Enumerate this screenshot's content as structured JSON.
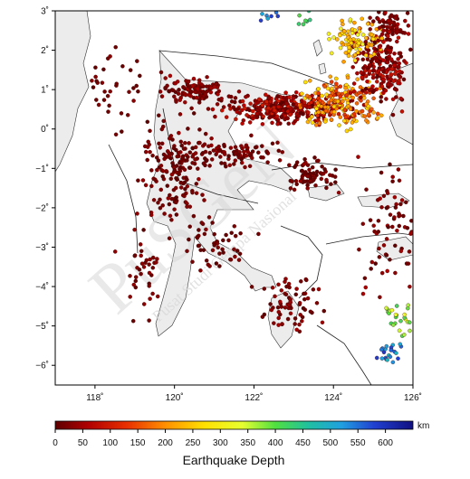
{
  "map": {
    "lon_range": [
      117,
      126
    ],
    "lat_range": [
      -6.5,
      3
    ],
    "lon_ticks": [
      {
        "value": 118,
        "label": "118˚"
      },
      {
        "value": 120,
        "label": "120˚"
      },
      {
        "value": 122,
        "label": "122˚"
      },
      {
        "value": 124,
        "label": "124˚"
      },
      {
        "value": 126,
        "label": "126˚"
      }
    ],
    "lat_ticks": [
      {
        "value": 3,
        "label": "3˚"
      },
      {
        "value": 2,
        "label": "2˚"
      },
      {
        "value": 1,
        "label": "1˚"
      },
      {
        "value": 0,
        "label": "0˚"
      },
      {
        "value": -1,
        "label": "−1˚"
      },
      {
        "value": -2,
        "label": "−2˚"
      },
      {
        "value": -3,
        "label": "−3˚"
      },
      {
        "value": -4,
        "label": "−4˚"
      },
      {
        "value": -5,
        "label": "−5˚"
      },
      {
        "value": -6,
        "label": "−6˚"
      }
    ],
    "land_color": "#ececec",
    "sea_color": "#ffffff",
    "fault_color": "#222222"
  },
  "colorbar": {
    "range": [
      0,
      650
    ],
    "ticks": [
      {
        "value": 0,
        "label": "0"
      },
      {
        "value": 50,
        "label": "50"
      },
      {
        "value": 100,
        "label": "100"
      },
      {
        "value": 150,
        "label": "150"
      },
      {
        "value": 200,
        "label": "200"
      },
      {
        "value": 250,
        "label": "250"
      },
      {
        "value": 300,
        "label": "300"
      },
      {
        "value": 350,
        "label": "350"
      },
      {
        "value": 400,
        "label": "400"
      },
      {
        "value": 450,
        "label": "450"
      },
      {
        "value": 500,
        "label": "500"
      },
      {
        "value": 550,
        "label": "550"
      },
      {
        "value": 600,
        "label": "600"
      }
    ],
    "unit": "km",
    "title": "Earthquake Depth",
    "stops": [
      {
        "depth": 0,
        "color": "#5e0000"
      },
      {
        "depth": 60,
        "color": "#b00000"
      },
      {
        "depth": 130,
        "color": "#e83000"
      },
      {
        "depth": 200,
        "color": "#ff9000"
      },
      {
        "depth": 270,
        "color": "#ffe000"
      },
      {
        "depth": 340,
        "color": "#e6ff30"
      },
      {
        "depth": 400,
        "color": "#50e040"
      },
      {
        "depth": 460,
        "color": "#20c0a0"
      },
      {
        "depth": 520,
        "color": "#20a0e0"
      },
      {
        "depth": 580,
        "color": "#2040d0"
      },
      {
        "depth": 650,
        "color": "#101080"
      }
    ]
  },
  "watermark": {
    "main": "PuSGeN",
    "sub": "Pusat Studi Gempa Nasional"
  },
  "clusters": [
    {
      "lon": 122.8,
      "lat": 0.5,
      "sx": 1.6,
      "sy": 0.35,
      "n": 320,
      "dmin": 0,
      "dmax": 100
    },
    {
      "lon": 124.2,
      "lat": 0.7,
      "sx": 1.0,
      "sy": 0.6,
      "n": 180,
      "dmin": 120,
      "dmax": 280
    },
    {
      "lon": 125.2,
      "lat": 1.6,
      "sx": 0.7,
      "sy": 0.9,
      "n": 220,
      "dmin": 0,
      "dmax": 90
    },
    {
      "lon": 124.6,
      "lat": 2.3,
      "sx": 0.6,
      "sy": 0.5,
      "n": 90,
      "dmin": 200,
      "dmax": 330
    },
    {
      "lon": 125.4,
      "lat": 2.6,
      "sx": 0.5,
      "sy": 0.4,
      "n": 60,
      "dmin": 0,
      "dmax": 60
    },
    {
      "lon": 120.5,
      "lat": 1.0,
      "sx": 0.8,
      "sy": 0.3,
      "n": 110,
      "dmin": 0,
      "dmax": 60
    },
    {
      "lon": 120.0,
      "lat": -1.0,
      "sx": 0.7,
      "sy": 1.2,
      "n": 160,
      "dmin": 0,
      "dmax": 40
    },
    {
      "lon": 121.5,
      "lat": -0.6,
      "sx": 1.2,
      "sy": 0.35,
      "n": 90,
      "dmin": 0,
      "dmax": 40
    },
    {
      "lon": 123.5,
      "lat": -1.2,
      "sx": 0.6,
      "sy": 0.4,
      "n": 70,
      "dmin": 0,
      "dmax": 40
    },
    {
      "lon": 123.0,
      "lat": -4.5,
      "sx": 0.7,
      "sy": 0.7,
      "n": 70,
      "dmin": 0,
      "dmax": 50
    },
    {
      "lon": 121.0,
      "lat": -3.0,
      "sx": 0.9,
      "sy": 0.6,
      "n": 50,
      "dmin": 0,
      "dmax": 30
    },
    {
      "lon": 119.2,
      "lat": -3.5,
      "sx": 0.5,
      "sy": 1.2,
      "n": 40,
      "dmin": 0,
      "dmax": 40
    },
    {
      "lon": 125.5,
      "lat": -2.5,
      "sx": 0.8,
      "sy": 1.6,
      "n": 80,
      "dmin": 0,
      "dmax": 60
    },
    {
      "lon": 125.6,
      "lat": -4.8,
      "sx": 0.3,
      "sy": 0.4,
      "n": 25,
      "dmin": 320,
      "dmax": 420
    },
    {
      "lon": 125.4,
      "lat": -5.6,
      "sx": 0.4,
      "sy": 0.3,
      "n": 22,
      "dmin": 480,
      "dmax": 600
    },
    {
      "lon": 118.6,
      "lat": 1.0,
      "sx": 0.8,
      "sy": 1.0,
      "n": 35,
      "dmin": 0,
      "dmax": 30
    },
    {
      "lon": 122.5,
      "lat": 2.9,
      "sx": 0.4,
      "sy": 0.2,
      "n": 10,
      "dmin": 500,
      "dmax": 600
    },
    {
      "lon": 123.3,
      "lat": 2.8,
      "sx": 0.4,
      "sy": 0.2,
      "n": 8,
      "dmin": 400,
      "dmax": 480
    }
  ]
}
